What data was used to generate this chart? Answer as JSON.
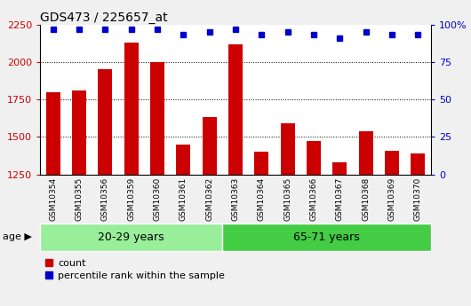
{
  "title": "GDS473 / 225657_at",
  "samples": [
    "GSM10354",
    "GSM10355",
    "GSM10356",
    "GSM10359",
    "GSM10360",
    "GSM10361",
    "GSM10362",
    "GSM10363",
    "GSM10364",
    "GSM10365",
    "GSM10366",
    "GSM10367",
    "GSM10368",
    "GSM10369",
    "GSM10370"
  ],
  "counts": [
    1800,
    1810,
    1950,
    2130,
    2000,
    1450,
    1630,
    2120,
    1400,
    1590,
    1475,
    1330,
    1540,
    1410,
    1390
  ],
  "percentile_ranks": [
    97,
    97,
    97,
    97,
    97,
    93,
    95,
    97,
    93,
    95,
    93,
    91,
    95,
    93,
    93
  ],
  "ylim_left": [
    1250,
    2250
  ],
  "ylim_right": [
    0,
    100
  ],
  "yticks_left": [
    1250,
    1500,
    1750,
    2000,
    2250
  ],
  "yticks_right": [
    0,
    25,
    50,
    75,
    100
  ],
  "grid_values": [
    1500,
    1750,
    2000
  ],
  "bar_color": "#cc0000",
  "dot_color": "#0000cc",
  "group1_label": "20-29 years",
  "group2_label": "65-71 years",
  "group1_count": 7,
  "group2_count": 8,
  "group1_color": "#99ee99",
  "group2_color": "#44cc44",
  "age_label": "age",
  "legend_count": "count",
  "legend_percentile": "percentile rank within the sample",
  "fig_bg": "#f0f0f0",
  "plot_bg": "#ffffff",
  "xtick_bg": "#cccccc",
  "title_fontsize": 10,
  "tick_fontsize": 8,
  "bar_width": 0.55
}
